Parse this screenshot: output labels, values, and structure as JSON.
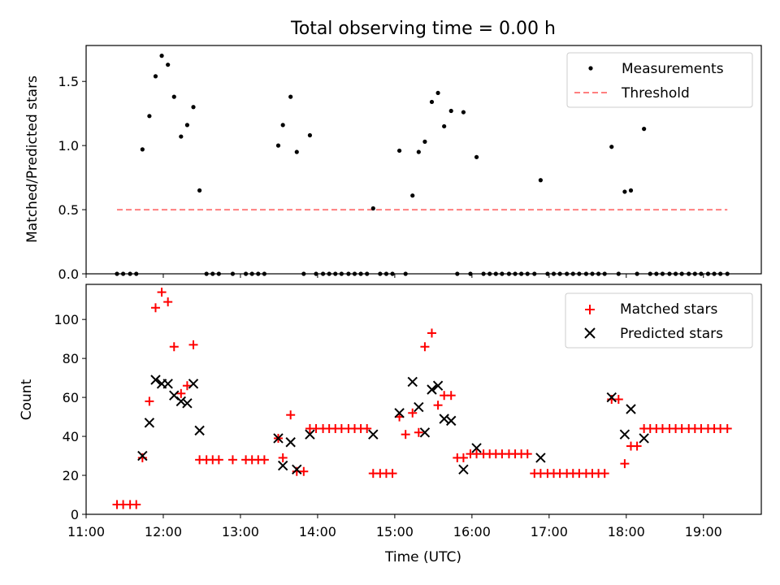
{
  "figure": {
    "title": "Total observing time = 0.00 h"
  },
  "chart_data": [
    {
      "type": "scatter",
      "ylabel": "Matched/Predicted stars",
      "xlim": [
        11.0,
        19.75
      ],
      "ylim": [
        0,
        1.78
      ],
      "yticks": [
        0.0,
        0.5,
        1.0,
        1.5
      ],
      "ytick_labels": [
        "0.0",
        "0.5",
        "1.0",
        "1.5"
      ],
      "grid": false,
      "legend_position": "top-right",
      "legend": [
        "Measurements",
        "Threshold"
      ],
      "series": [
        {
          "name": "Measurements",
          "kind": "dot",
          "color": "#000000",
          "x": [
            11.4,
            11.48,
            11.57,
            11.65,
            11.73,
            11.82,
            11.9,
            11.98,
            12.06,
            12.14,
            12.23,
            12.31,
            12.39,
            12.47,
            12.56,
            12.64,
            12.72,
            12.9,
            13.07,
            13.15,
            13.23,
            13.31,
            13.49,
            13.55,
            13.65,
            13.73,
            13.82,
            13.9,
            13.98,
            14.07,
            14.15,
            14.23,
            14.31,
            14.4,
            14.48,
            14.56,
            14.64,
            14.72,
            14.81,
            14.89,
            14.97,
            15.06,
            15.14,
            15.23,
            15.31,
            15.39,
            15.48,
            15.56,
            15.64,
            15.73,
            15.81,
            15.89,
            15.98,
            16.06,
            16.15,
            16.23,
            16.31,
            16.39,
            16.48,
            16.56,
            16.64,
            16.72,
            16.81,
            16.89,
            16.98,
            17.06,
            17.14,
            17.23,
            17.31,
            17.39,
            17.48,
            17.56,
            17.64,
            17.72,
            17.81,
            17.9,
            17.98,
            18.06,
            18.14,
            18.23,
            18.31,
            18.39,
            18.47,
            18.56,
            18.64,
            18.72,
            18.81,
            18.89,
            18.97,
            19.06,
            19.14,
            19.22,
            19.31
          ],
          "y": [
            0,
            0,
            0,
            0,
            0.97,
            1.23,
            1.54,
            1.7,
            1.63,
            1.38,
            1.07,
            1.16,
            1.3,
            0.65,
            0,
            0,
            0,
            0,
            0,
            0,
            0,
            0,
            1.0,
            1.16,
            1.38,
            0.95,
            0,
            1.08,
            0,
            0,
            0,
            0,
            0,
            0,
            0,
            0,
            0,
            0.51,
            0,
            0,
            0,
            0.96,
            0,
            0.61,
            0.95,
            1.03,
            1.34,
            1.41,
            1.15,
            1.27,
            0,
            1.26,
            0,
            0.91,
            0,
            0,
            0,
            0,
            0,
            0,
            0,
            0,
            0,
            0.73,
            0,
            0,
            0,
            0,
            0,
            0,
            0,
            0,
            0,
            0,
            0.99,
            0,
            0.64,
            0.65,
            0,
            1.13,
            0,
            0,
            0,
            0,
            0,
            0,
            0,
            0,
            0,
            0,
            0,
            0,
            0
          ]
        },
        {
          "name": "Threshold",
          "kind": "dashed-line",
          "color": "#ff7f7f",
          "x": [
            11.4,
            19.31
          ],
          "y": [
            0.5,
            0.5
          ]
        }
      ]
    },
    {
      "type": "scatter",
      "ylabel": "Count",
      "xlabel": "Time (UTC)",
      "xlim": [
        11.0,
        19.75
      ],
      "ylim": [
        0,
        118
      ],
      "yticks": [
        0,
        20,
        40,
        60,
        80,
        100
      ],
      "ytick_labels": [
        "0",
        "20",
        "40",
        "60",
        "80",
        "100"
      ],
      "xticks": [
        11,
        12,
        13,
        14,
        15,
        16,
        17,
        18,
        19
      ],
      "xtick_labels": [
        "11:00",
        "12:00",
        "13:00",
        "14:00",
        "15:00",
        "16:00",
        "17:00",
        "18:00",
        "19:00"
      ],
      "grid": false,
      "legend_position": "top-right",
      "legend": [
        "Matched stars",
        "Predicted stars"
      ],
      "series": [
        {
          "name": "Matched stars",
          "marker": "plus",
          "color": "#ff0000",
          "x": [
            11.4,
            11.48,
            11.57,
            11.65,
            11.73,
            11.82,
            11.9,
            11.98,
            12.06,
            12.14,
            12.23,
            12.31,
            12.39,
            12.47,
            12.56,
            12.64,
            12.72,
            12.9,
            13.07,
            13.15,
            13.23,
            13.31,
            13.49,
            13.55,
            13.65,
            13.73,
            13.82,
            13.9,
            13.98,
            14.07,
            14.15,
            14.23,
            14.31,
            14.4,
            14.48,
            14.56,
            14.64,
            14.72,
            14.81,
            14.89,
            14.97,
            15.06,
            15.14,
            15.23,
            15.31,
            15.39,
            15.48,
            15.56,
            15.64,
            15.73,
            15.81,
            15.89,
            15.98,
            16.06,
            16.15,
            16.23,
            16.31,
            16.39,
            16.48,
            16.56,
            16.64,
            16.72,
            16.81,
            16.89,
            16.98,
            17.06,
            17.14,
            17.23,
            17.31,
            17.39,
            17.48,
            17.56,
            17.64,
            17.72,
            17.81,
            17.9,
            17.98,
            18.06,
            18.14,
            18.23,
            18.31,
            18.39,
            18.47,
            18.56,
            18.64,
            18.72,
            18.81,
            18.89,
            18.97,
            19.06,
            19.14,
            19.22,
            19.31
          ],
          "y": [
            5,
            5,
            5,
            5,
            29,
            58,
            106,
            114,
            109,
            86,
            62,
            66,
            87,
            28,
            28,
            28,
            28,
            28,
            28,
            28,
            28,
            28,
            39,
            29,
            51,
            22,
            22,
            44,
            44,
            44,
            44,
            44,
            44,
            44,
            44,
            44,
            44,
            21,
            21,
            21,
            21,
            50,
            41,
            52,
            42,
            86,
            93,
            56,
            61,
            61,
            29,
            29,
            31,
            31,
            31,
            31,
            31,
            31,
            31,
            31,
            31,
            31,
            21,
            21,
            21,
            21,
            21,
            21,
            21,
            21,
            21,
            21,
            21,
            21,
            59,
            59,
            26,
            35,
            35,
            44,
            44,
            44,
            44,
            44,
            44,
            44,
            44,
            44,
            44,
            44,
            44,
            44,
            44
          ]
        },
        {
          "name": "Predicted stars",
          "marker": "x",
          "color": "#000000",
          "x": [
            11.73,
            11.82,
            11.9,
            11.98,
            12.06,
            12.14,
            12.23,
            12.31,
            12.39,
            12.47,
            13.49,
            13.55,
            13.65,
            13.73,
            13.9,
            14.72,
            15.06,
            15.23,
            15.31,
            15.39,
            15.48,
            15.56,
            15.64,
            15.73,
            15.89,
            16.06,
            16.89,
            17.81,
            17.98,
            18.06,
            18.23
          ],
          "y": [
            30,
            47,
            69,
            67,
            67,
            61,
            58,
            57,
            67,
            43,
            39,
            25,
            37,
            23,
            41,
            41,
            52,
            68,
            55,
            42,
            64,
            66,
            49,
            48,
            23,
            34,
            29,
            60,
            41,
            54,
            39
          ]
        }
      ]
    }
  ]
}
